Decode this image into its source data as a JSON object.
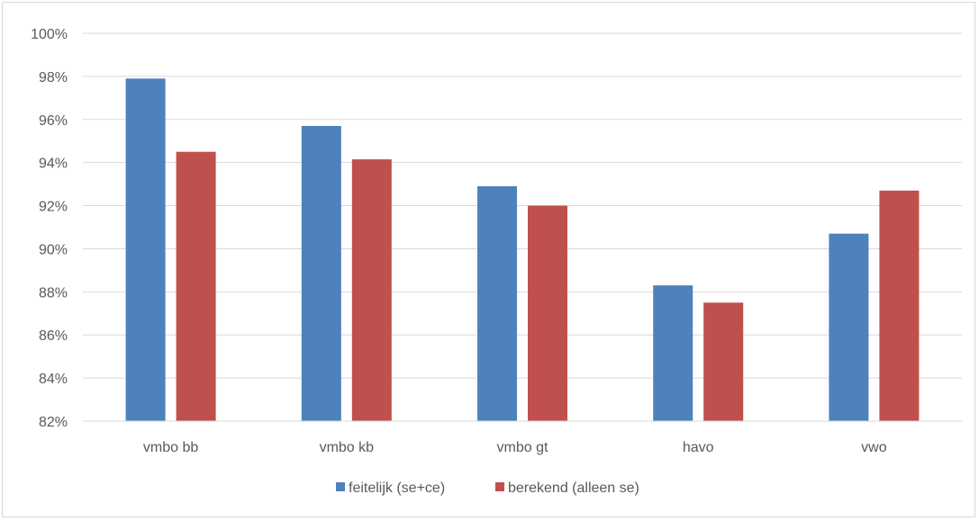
{
  "chart_data": {
    "type": "bar",
    "categories": [
      "vmbo bb",
      "vmbo kb",
      "vmbo gt",
      "havo",
      "vwo"
    ],
    "series": [
      {
        "name": "feitelijk (se+ce)",
        "values": [
          97.9,
          95.7,
          92.9,
          88.3,
          90.7
        ],
        "color": "#4f81bd"
      },
      {
        "name": "berekend (alleen se)",
        "values": [
          94.5,
          94.15,
          92.0,
          87.5,
          92.7
        ],
        "color": "#c0504d"
      }
    ],
    "yticks": [
      "82%",
      "84%",
      "86%",
      "88%",
      "90%",
      "92%",
      "94%",
      "96%",
      "98%",
      "100%"
    ],
    "ylim": [
      82,
      100
    ],
    "grid": true,
    "legend": "bottom-center",
    "gridline_color": "#d9d9d9"
  }
}
